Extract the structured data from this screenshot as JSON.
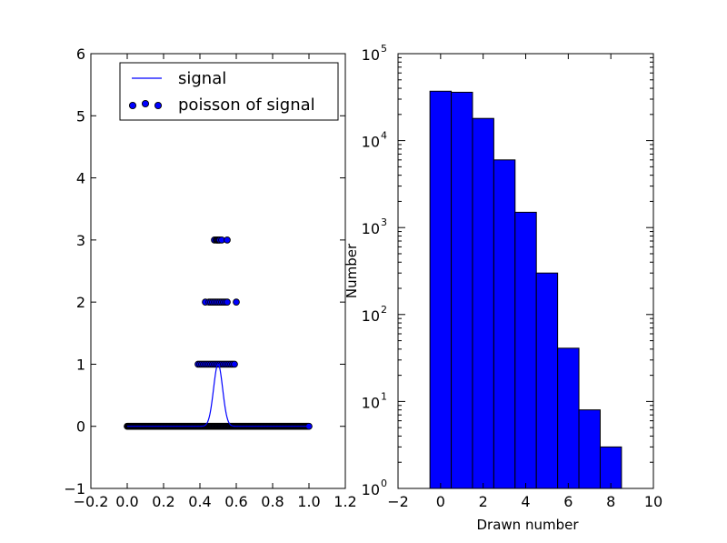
{
  "chart_data": [
    {
      "type": "scatter",
      "title": "",
      "xlabel": "",
      "ylabel": "",
      "xlim": [
        -0.2,
        1.2
      ],
      "ylim": [
        -1,
        6
      ],
      "x_ticks": [
        "−0.2",
        "0.0",
        "0.2",
        "0.4",
        "0.6",
        "0.8",
        "1.0",
        "1.2"
      ],
      "x_tick_values": [
        -0.2,
        0.0,
        0.2,
        0.4,
        0.6,
        0.8,
        1.0,
        1.2
      ],
      "y_ticks": [
        "−1",
        "0",
        "1",
        "2",
        "3",
        "4",
        "5",
        "6"
      ],
      "y_tick_values": [
        -1,
        0,
        1,
        2,
        3,
        4,
        5,
        6
      ],
      "legend": {
        "placement": "top-center",
        "entries": [
          "signal",
          "poisson of signal"
        ]
      },
      "colors": {
        "signal": "#0000ff",
        "poisson": "#0000ff"
      },
      "series": [
        {
          "name": "signal",
          "kind": "line",
          "peak_x": 0.5,
          "peak_y": 1.0,
          "sigma": 0.025,
          "x_range": [
            0.0,
            1.0
          ]
        },
        {
          "name": "poisson of signal",
          "kind": "scatter",
          "x_range": [
            0.0,
            1.0
          ],
          "points": [
            {
              "y": 3,
              "x": [
                0.48,
                0.49,
                0.495,
                0.5,
                0.505,
                0.51,
                0.52,
                0.55
              ]
            },
            {
              "y": 2,
              "x": [
                0.43,
                0.45,
                0.46,
                0.47,
                0.48,
                0.49,
                0.5,
                0.51,
                0.52,
                0.53,
                0.54,
                0.55,
                0.6
              ]
            },
            {
              "y": 1,
              "x": [
                0.39,
                0.4,
                0.41,
                0.42,
                0.43,
                0.44,
                0.45,
                0.46,
                0.47,
                0.48,
                0.49,
                0.5,
                0.51,
                0.52,
                0.53,
                0.54,
                0.55,
                0.56,
                0.57,
                0.58,
                0.59
              ]
            }
          ]
        }
      ]
    },
    {
      "type": "bar",
      "title": "",
      "xlabel": "Drawn number",
      "ylabel": "Number",
      "log_y": true,
      "xlim": [
        -2,
        10
      ],
      "ylim": [
        1,
        100000
      ],
      "x_ticks": [
        "−2",
        "0",
        "2",
        "4",
        "6",
        "8",
        "10"
      ],
      "x_tick_values": [
        -2,
        0,
        2,
        4,
        6,
        8,
        10
      ],
      "y_tick_exponents": [
        "0",
        "1",
        "2",
        "3",
        "4",
        "5"
      ],
      "y_tick_base": "10",
      "bar_color": "#0000ff",
      "categories": [
        0,
        1,
        2,
        3,
        4,
        5,
        6,
        7,
        8
      ],
      "values": [
        37000,
        36000,
        18000,
        6000,
        1500,
        300,
        41,
        8,
        3
      ]
    }
  ]
}
